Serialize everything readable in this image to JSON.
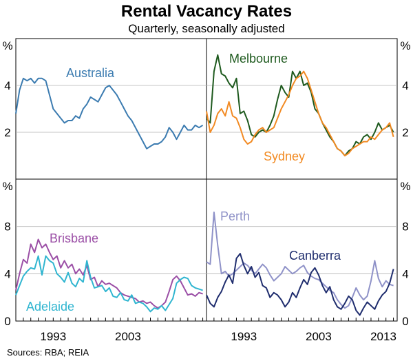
{
  "title": "Rental Vacancy Rates",
  "subtitle": "Quarterly, seasonally adjusted",
  "source": "Sources:   RBA; REIA",
  "chart_data": [
    {
      "type": "line",
      "panel": "top-left",
      "ylabel": "%",
      "ylim": [
        0,
        6
      ],
      "yticks": [
        2,
        4
      ],
      "xlim": [
        1988,
        2013.5
      ],
      "series": [
        {
          "name": "Australia",
          "color": "#3b7bb0",
          "x": [
            1988.0,
            1988.5,
            1989.0,
            1989.5,
            1990.0,
            1990.5,
            1991.0,
            1991.5,
            1992.0,
            1992.5,
            1993.0,
            1993.5,
            1994.0,
            1994.5,
            1995.0,
            1995.5,
            1996.0,
            1996.5,
            1997.0,
            1997.5,
            1998.0,
            1998.5,
            1999.0,
            1999.5,
            2000.0,
            2000.5,
            2001.0,
            2001.5,
            2002.0,
            2002.5,
            2003.0,
            2003.5,
            2004.0,
            2004.5,
            2005.0,
            2005.5,
            2006.0,
            2006.5,
            2007.0,
            2007.5,
            2008.0,
            2008.5,
            2009.0,
            2009.5,
            2010.0,
            2010.5,
            2011.0,
            2011.5,
            2012.0,
            2012.5,
            2013.0
          ],
          "y": [
            2.8,
            3.8,
            4.3,
            4.2,
            4.3,
            4.1,
            4.3,
            4.3,
            4.2,
            3.6,
            3.0,
            2.8,
            2.6,
            2.4,
            2.5,
            2.5,
            2.7,
            2.6,
            3.0,
            3.2,
            3.5,
            3.4,
            3.3,
            3.6,
            3.9,
            4.0,
            3.8,
            3.6,
            3.3,
            3.0,
            2.7,
            2.5,
            2.2,
            1.9,
            1.6,
            1.3,
            1.4,
            1.5,
            1.5,
            1.6,
            1.8,
            2.2,
            2.0,
            1.7,
            2.0,
            2.3,
            2.1,
            2.1,
            2.3,
            2.2,
            2.3
          ]
        }
      ]
    },
    {
      "type": "line",
      "panel": "top-right",
      "ylabel": "%",
      "ylim": [
        0,
        6
      ],
      "yticks": [
        2,
        4
      ],
      "xlim": [
        1988,
        2013.5
      ],
      "series": [
        {
          "name": "Melbourne",
          "color": "#1e5a1e",
          "x": [
            1988.0,
            1988.5,
            1989.0,
            1989.5,
            1990.0,
            1990.5,
            1991.0,
            1991.5,
            1992.0,
            1992.5,
            1993.0,
            1993.5,
            1994.0,
            1994.5,
            1995.0,
            1995.5,
            1996.0,
            1996.5,
            1997.0,
            1997.5,
            1998.0,
            1998.5,
            1999.0,
            1999.5,
            2000.0,
            2000.5,
            2001.0,
            2001.5,
            2002.0,
            2002.5,
            2003.0,
            2003.5,
            2004.0,
            2004.5,
            2005.0,
            2005.5,
            2006.0,
            2006.5,
            2007.0,
            2007.5,
            2008.0,
            2008.5,
            2009.0,
            2009.5,
            2010.0,
            2010.5,
            2011.0,
            2011.5,
            2012.0,
            2012.5,
            2013.0
          ],
          "y": [
            2.6,
            2.4,
            4.6,
            5.3,
            4.5,
            4.4,
            4.1,
            3.9,
            4.3,
            2.8,
            2.9,
            2.5,
            1.9,
            1.8,
            2.0,
            2.1,
            2.0,
            2.3,
            2.7,
            3.4,
            4.0,
            3.7,
            3.5,
            4.6,
            4.3,
            4.6,
            4.0,
            4.1,
            3.7,
            3.0,
            2.8,
            2.4,
            2.1,
            1.8,
            1.6,
            1.3,
            1.2,
            1.0,
            1.2,
            1.3,
            1.6,
            1.5,
            1.8,
            1.9,
            1.7,
            2.0,
            2.4,
            2.1,
            2.2,
            2.3,
            2.0
          ]
        },
        {
          "name": "Sydney",
          "color": "#f28a22",
          "x": [
            1988.0,
            1988.5,
            1989.0,
            1989.5,
            1990.0,
            1990.5,
            1991.0,
            1991.5,
            1992.0,
            1992.5,
            1993.0,
            1993.5,
            1994.0,
            1994.5,
            1995.0,
            1995.5,
            1996.0,
            1996.5,
            1997.0,
            1997.5,
            1998.0,
            1998.5,
            1999.0,
            1999.5,
            2000.0,
            2000.5,
            2001.0,
            2001.5,
            2002.0,
            2002.5,
            2003.0,
            2003.5,
            2004.0,
            2004.5,
            2005.0,
            2005.5,
            2006.0,
            2006.5,
            2007.0,
            2007.5,
            2008.0,
            2008.5,
            2009.0,
            2009.5,
            2010.0,
            2010.5,
            2011.0,
            2011.5,
            2012.0,
            2012.5,
            2013.0
          ],
          "y": [
            2.9,
            2.0,
            2.3,
            2.8,
            3.0,
            2.7,
            3.3,
            2.7,
            2.6,
            2.2,
            1.7,
            1.5,
            1.6,
            1.9,
            2.1,
            2.2,
            2.0,
            2.1,
            2.2,
            2.6,
            3.0,
            3.3,
            3.6,
            4.0,
            4.3,
            4.4,
            4.6,
            4.3,
            3.8,
            3.3,
            2.8,
            2.4,
            2.2,
            1.9,
            1.6,
            1.3,
            1.2,
            1.0,
            1.1,
            1.3,
            1.4,
            1.5,
            1.6,
            1.6,
            1.8,
            1.7,
            1.9,
            2.1,
            2.2,
            2.4,
            1.8
          ]
        }
      ]
    },
    {
      "type": "line",
      "panel": "bottom-left",
      "ylabel": "%",
      "ylim": [
        0,
        12
      ],
      "yticks": [
        0,
        4,
        8
      ],
      "xlim": [
        1988,
        2013.5
      ],
      "xticks": [
        "1993",
        "2003"
      ],
      "series": [
        {
          "name": "Brisbane",
          "color": "#9b4fa6",
          "x": [
            1988.0,
            1988.5,
            1989.0,
            1989.5,
            1990.0,
            1990.5,
            1991.0,
            1991.5,
            1992.0,
            1992.5,
            1993.0,
            1993.5,
            1994.0,
            1994.5,
            1995.0,
            1995.5,
            1996.0,
            1996.5,
            1997.0,
            1997.5,
            1998.0,
            1998.5,
            1999.0,
            1999.5,
            2000.0,
            2000.5,
            2001.0,
            2001.5,
            2002.0,
            2002.5,
            2003.0,
            2003.5,
            2004.0,
            2004.5,
            2005.0,
            2005.5,
            2006.0,
            2006.5,
            2007.0,
            2007.5,
            2008.0,
            2008.5,
            2009.0,
            2009.5,
            2010.0,
            2010.5,
            2011.0,
            2011.5,
            2012.0,
            2012.5,
            2013.0
          ],
          "y": [
            2.6,
            4.0,
            5.2,
            4.9,
            6.5,
            5.8,
            6.9,
            6.2,
            6.5,
            5.8,
            5.2,
            5.5,
            4.5,
            5.1,
            4.5,
            4.8,
            4.0,
            4.4,
            3.9,
            4.7,
            3.5,
            3.7,
            2.9,
            3.4,
            3.1,
            3.2,
            3.0,
            2.8,
            2.4,
            2.2,
            2.1,
            2.0,
            1.9,
            1.6,
            1.7,
            1.5,
            1.6,
            1.3,
            1.1,
            1.3,
            1.6,
            2.5,
            3.5,
            3.8,
            3.4,
            2.8,
            2.2,
            2.3,
            2.1,
            2.4,
            2.3
          ]
        },
        {
          "name": "Adelaide",
          "color": "#2fb5d0",
          "x": [
            1988.0,
            1988.5,
            1989.0,
            1989.5,
            1990.0,
            1990.5,
            1991.0,
            1991.5,
            1992.0,
            1992.5,
            1993.0,
            1993.5,
            1994.0,
            1994.5,
            1995.0,
            1995.5,
            1996.0,
            1996.5,
            1997.0,
            1997.5,
            1998.0,
            1998.5,
            1999.0,
            1999.5,
            2000.0,
            2000.5,
            2001.0,
            2001.5,
            2002.0,
            2002.5,
            2003.0,
            2003.5,
            2004.0,
            2004.5,
            2005.0,
            2005.5,
            2006.0,
            2006.5,
            2007.0,
            2007.5,
            2008.0,
            2008.5,
            2009.0,
            2009.5,
            2010.0,
            2010.5,
            2011.0,
            2011.5,
            2012.0,
            2012.5,
            2013.0
          ],
          "y": [
            2.2,
            3.0,
            3.8,
            4.2,
            4.5,
            4.4,
            5.5,
            3.9,
            5.5,
            5.1,
            4.9,
            4.0,
            3.7,
            3.3,
            4.1,
            3.2,
            2.9,
            3.6,
            3.3,
            5.1,
            3.7,
            2.8,
            2.9,
            3.0,
            2.5,
            2.8,
            2.1,
            2.0,
            2.4,
            1.8,
            1.7,
            2.2,
            1.5,
            1.6,
            1.5,
            1.2,
            0.8,
            1.1,
            1.0,
            1.3,
            0.9,
            1.4,
            1.9,
            3.2,
            3.5,
            3.7,
            3.6,
            3.0,
            2.8,
            2.7,
            2.6
          ]
        }
      ]
    },
    {
      "type": "line",
      "panel": "bottom-right",
      "ylabel": "%",
      "ylim": [
        0,
        12
      ],
      "yticks": [
        4,
        8
      ],
      "xlim": [
        1988,
        2013.5
      ],
      "xticks": [
        "1993",
        "2003",
        "2013"
      ],
      "series": [
        {
          "name": "Perth",
          "color": "#8f92c8",
          "x": [
            1988.0,
            1988.5,
            1989.0,
            1989.5,
            1990.0,
            1990.5,
            1991.0,
            1991.5,
            1992.0,
            1992.5,
            1993.0,
            1993.5,
            1994.0,
            1994.5,
            1995.0,
            1995.5,
            1996.0,
            1996.5,
            1997.0,
            1997.5,
            1998.0,
            1998.5,
            1999.0,
            1999.5,
            2000.0,
            2000.5,
            2001.0,
            2001.5,
            2002.0,
            2002.5,
            2003.0,
            2003.5,
            2004.0,
            2004.5,
            2005.0,
            2005.5,
            2006.0,
            2006.5,
            2007.0,
            2007.5,
            2008.0,
            2008.5,
            2009.0,
            2009.5,
            2010.0,
            2010.5,
            2011.0,
            2011.5,
            2012.0,
            2012.5,
            2013.0
          ],
          "y": [
            5.0,
            4.8,
            9.2,
            6.4,
            4.0,
            4.2,
            3.8,
            4.0,
            4.3,
            4.6,
            4.9,
            4.7,
            4.3,
            4.0,
            4.4,
            4.8,
            4.5,
            3.9,
            3.4,
            3.7,
            4.0,
            4.6,
            4.3,
            4.0,
            4.2,
            4.5,
            4.7,
            4.1,
            3.8,
            3.6,
            3.5,
            3.2,
            2.9,
            2.6,
            2.4,
            1.8,
            1.4,
            1.1,
            1.3,
            2.0,
            2.8,
            2.2,
            1.8,
            2.1,
            3.4,
            5.1,
            3.6,
            2.9,
            3.4,
            3.1,
            3.0
          ]
        },
        {
          "name": "Canberra",
          "color": "#1f2d6e",
          "x": [
            1988.0,
            1988.5,
            1989.0,
            1989.5,
            1990.0,
            1990.5,
            1991.0,
            1991.5,
            1992.0,
            1992.5,
            1993.0,
            1993.5,
            1994.0,
            1994.5,
            1995.0,
            1995.5,
            1996.0,
            1996.5,
            1997.0,
            1997.5,
            1998.0,
            1998.5,
            1999.0,
            1999.5,
            2000.0,
            2000.5,
            2001.0,
            2001.5,
            2002.0,
            2002.5,
            2003.0,
            2003.5,
            2004.0,
            2004.5,
            2005.0,
            2005.5,
            2006.0,
            2006.5,
            2007.0,
            2007.5,
            2008.0,
            2008.5,
            2009.0,
            2009.5,
            2010.0,
            2010.5,
            2011.0,
            2011.5,
            2012.0,
            2012.5,
            2013.0
          ],
          "y": [
            2.2,
            1.5,
            1.2,
            2.0,
            2.5,
            3.3,
            3.9,
            3.2,
            5.3,
            5.7,
            4.7,
            4.0,
            4.6,
            3.7,
            4.1,
            3.0,
            2.8,
            2.0,
            2.4,
            2.2,
            1.8,
            1.2,
            1.6,
            2.4,
            2.0,
            2.8,
            3.5,
            3.1,
            4.1,
            4.5,
            3.9,
            3.0,
            2.4,
            2.9,
            1.8,
            1.2,
            1.0,
            1.5,
            2.1,
            1.8,
            0.9,
            0.5,
            1.1,
            1.6,
            1.3,
            1.0,
            1.7,
            2.2,
            2.5,
            3.2,
            4.4
          ]
        }
      ]
    }
  ]
}
